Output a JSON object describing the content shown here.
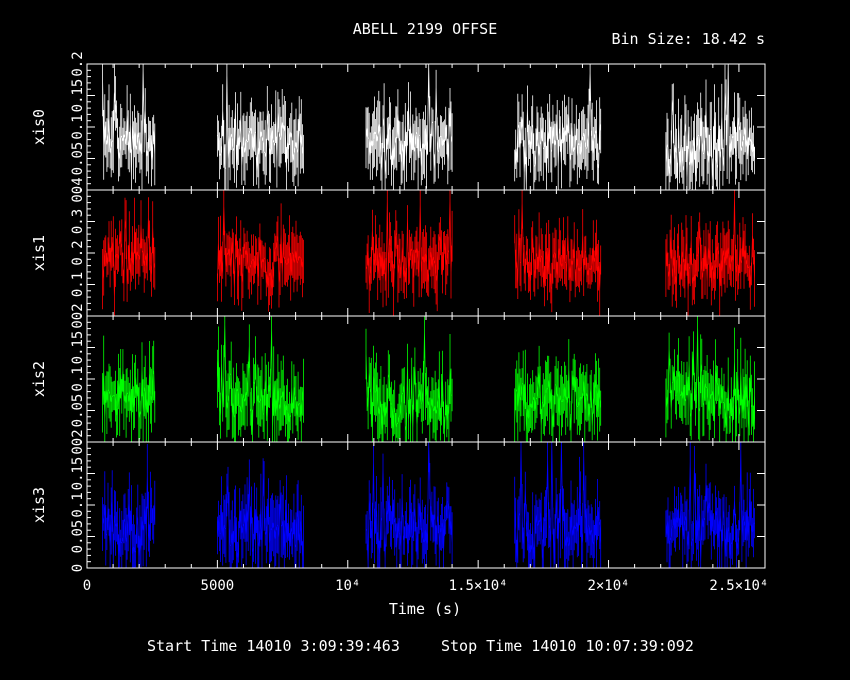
{
  "chart_data": {
    "type": "line",
    "title": "ABELL 2199 OFFSE",
    "bin_size_label": "Bin Size:  18.42 s",
    "xlabel": "Time (s)",
    "x_tick_labels": [
      "0",
      "5000",
      "10⁴",
      "1.5×10⁴",
      "2×10⁴",
      "2.5×10⁴"
    ],
    "x_ticks": [
      0,
      5000,
      10000,
      15000,
      20000,
      25000
    ],
    "xlim": [
      0,
      26000
    ],
    "start_time_label": "Start Time 14010  3:09:39:463",
    "stop_time_label": "Stop Time 14010 10:07:39:092",
    "observation_windows": [
      [
        600,
        2600
      ],
      [
        5000,
        8300
      ],
      [
        10700,
        14000
      ],
      [
        16400,
        19700
      ],
      [
        22200,
        25600
      ]
    ],
    "series": [
      {
        "name": "xis0",
        "color": "#ffffff",
        "ylim": [
          0,
          0.2
        ],
        "mean": 0.075,
        "spread": 0.035,
        "seed": 11,
        "y_tick_labels": [
          "0",
          "0.05",
          "0.1",
          "0.15",
          "0.2"
        ],
        "y_ticks": [
          0,
          0.05,
          0.1,
          0.15,
          0.2
        ]
      },
      {
        "name": "xis1",
        "color": "#ff0000",
        "ylim": [
          0,
          0.4
        ],
        "mean": 0.17,
        "spread": 0.06,
        "seed": 23,
        "y_tick_labels": [
          "0",
          "0.1",
          "0.2",
          "0.3",
          "0.4"
        ],
        "y_ticks": [
          0,
          0.1,
          0.2,
          0.3,
          0.4
        ]
      },
      {
        "name": "xis2",
        "color": "#00ff00",
        "ylim": [
          0,
          0.2
        ],
        "mean": 0.07,
        "spread": 0.035,
        "seed": 37,
        "y_tick_labels": [
          "0",
          "0.05",
          "0.1",
          "0.15",
          "0.2"
        ],
        "y_ticks": [
          0,
          0.05,
          0.1,
          0.15,
          0.2
        ]
      },
      {
        "name": "xis3",
        "color": "#0000ff",
        "ylim": [
          0,
          0.2
        ],
        "mean": 0.065,
        "spread": 0.035,
        "seed": 53,
        "y_tick_labels": [
          "0",
          "0.05",
          "0.1",
          "0.15",
          "0.2"
        ],
        "y_ticks": [
          0,
          0.05,
          0.1,
          0.15,
          0.2
        ]
      }
    ]
  }
}
